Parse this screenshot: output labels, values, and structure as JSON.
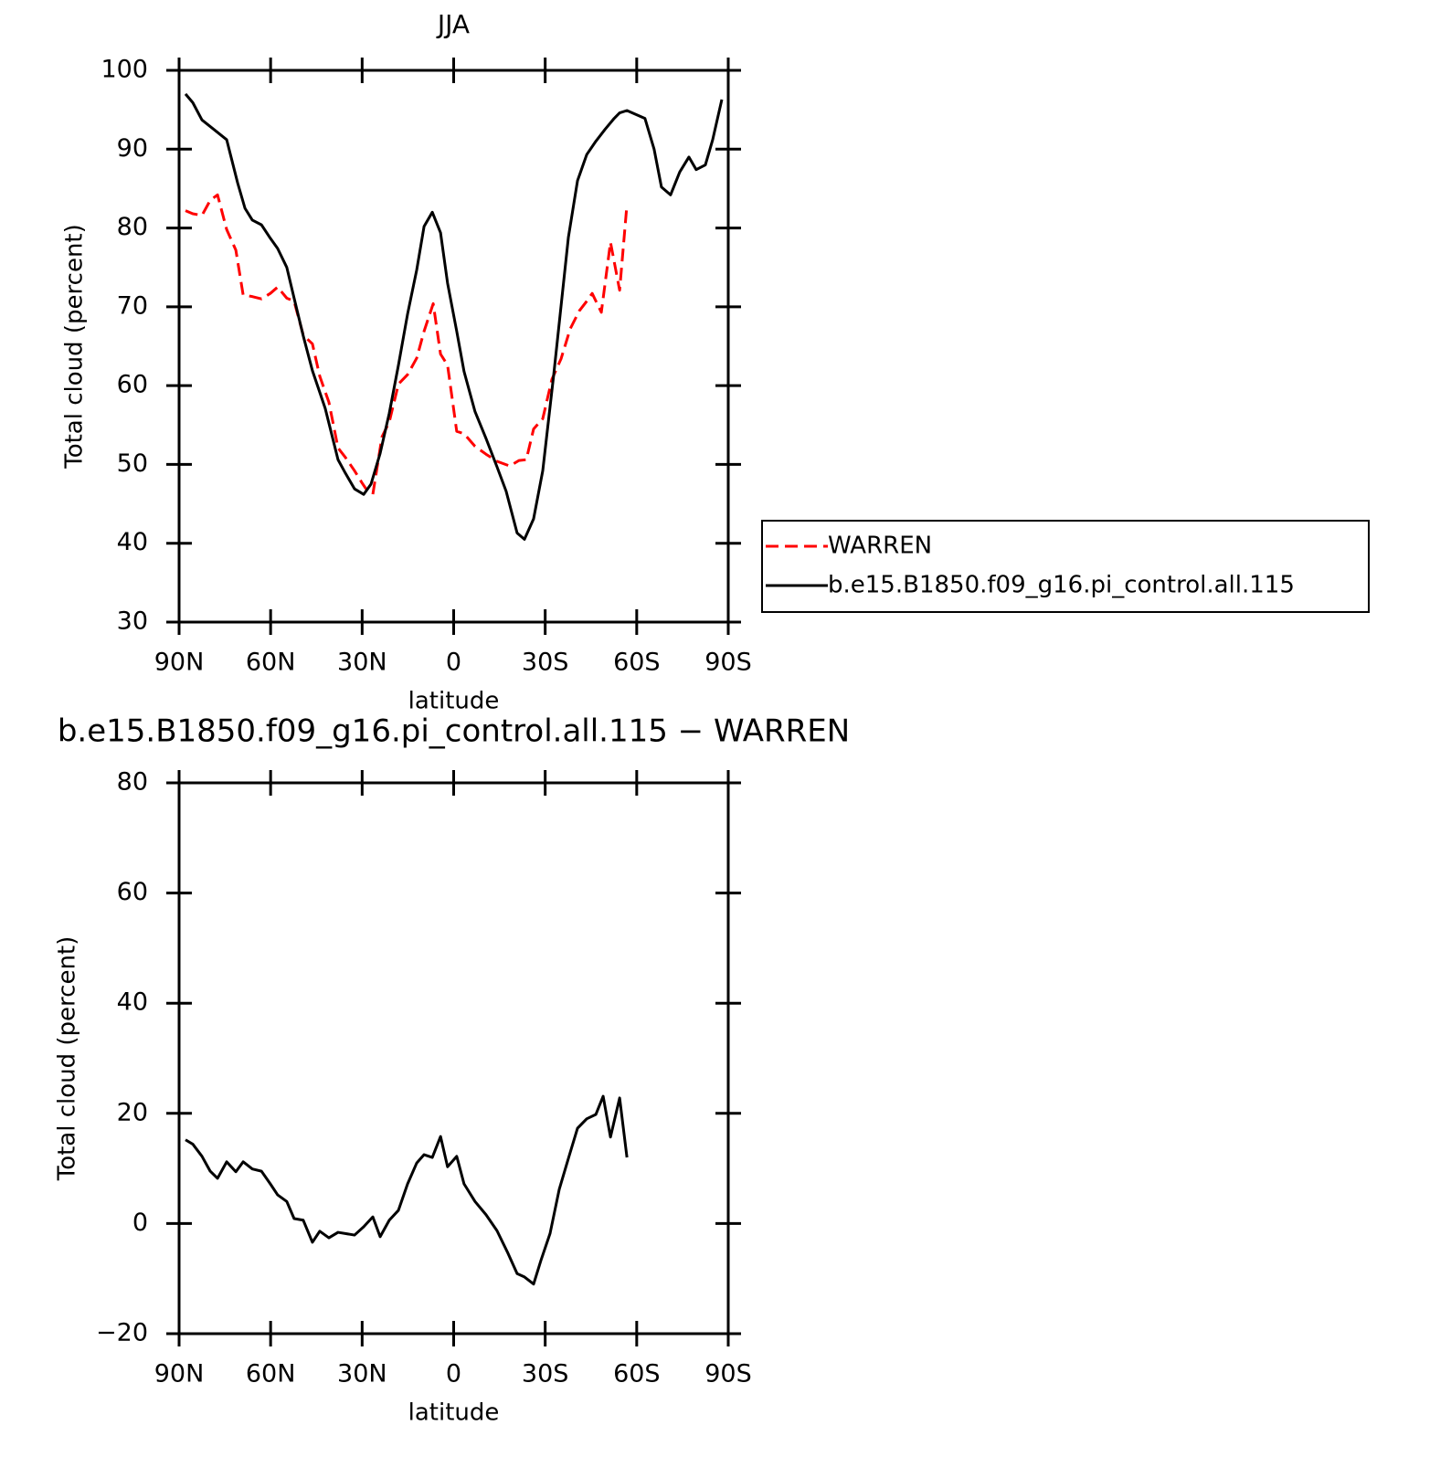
{
  "chart_data": [
    {
      "type": "line",
      "title": "JJA",
      "xlabel": "latitude",
      "ylabel": "Total cloud (percent)",
      "xlim": [
        90,
        -90
      ],
      "xticks": [
        {
          "value": 90,
          "label": "90N"
        },
        {
          "value": 60,
          "label": "60N"
        },
        {
          "value": 30,
          "label": "30N"
        },
        0,
        {
          "value": -30,
          "label": "30S"
        },
        {
          "value": -60,
          "label": "60S"
        },
        {
          "value": -90,
          "label": "90S"
        }
      ],
      "ylim": [
        30,
        100
      ],
      "yticks": [
        30,
        40,
        50,
        60,
        70,
        80,
        90,
        100
      ],
      "legend": "right",
      "series": [
        {
          "name": "WARREN",
          "color": "#ff0000",
          "style": "dashed",
          "x": [
            87.9,
            85.5,
            82.5,
            79.8,
            77.4,
            74.4,
            71.4,
            69.0,
            66.0,
            63.0,
            60.1,
            57.7,
            54.7,
            52.3,
            49.3,
            46.3,
            43.9,
            40.9,
            37.9,
            35.5,
            32.5,
            30.1,
            28.9,
            26.5,
            23.5,
            21.1,
            18.1,
            15.1,
            12.1,
            9.7,
            6.7,
            4.3,
            2.0,
            -1.0,
            -3.4,
            -7.0,
            -10.6,
            -14.2,
            -18.4,
            -21.4,
            -23.8,
            -26.2,
            -29.2,
            -32.2,
            -35.2,
            -38.2,
            -41.2,
            -43.6,
            -45.4,
            -48.4,
            -51.4,
            -54.4,
            -56.8
          ],
          "values": [
            82.2,
            81.8,
            81.6,
            83.5,
            84.2,
            79.8,
            77.2,
            71.5,
            71.3,
            71.0,
            71.7,
            72.5,
            71.1,
            70.7,
            66.4,
            65.3,
            61.2,
            57.9,
            52.1,
            50.9,
            49.2,
            47.7,
            47.0,
            46.2,
            53.5,
            55.4,
            60.2,
            61.4,
            63.5,
            66.9,
            70.4,
            64.0,
            62.6,
            54.2,
            53.9,
            52.3,
            51.3,
            50.4,
            49.8,
            50.5,
            50.6,
            54.5,
            55.8,
            60.8,
            63.4,
            67.2,
            69.5,
            70.7,
            71.7,
            69.3,
            78.2,
            72.1,
            83.0
          ]
        },
        {
          "name": "b.e15.B1850.f09_g16.pi_control.all.115",
          "color": "#000000",
          "style": "solid",
          "x": [
            87.9,
            85.5,
            82.5,
            78.6,
            74.4,
            70.8,
            68.4,
            66.0,
            63.0,
            60.1,
            57.7,
            54.7,
            52.3,
            49.3,
            46.3,
            42.1,
            37.9,
            35.5,
            32.5,
            29.5,
            27.1,
            24.1,
            21.1,
            18.1,
            15.1,
            12.1,
            9.7,
            7.0,
            4.3,
            2.0,
            -1.0,
            -3.4,
            -7.0,
            -10.6,
            -14.2,
            -17.2,
            -20.8,
            -23.2,
            -26.2,
            -29.2,
            -32.8,
            -37.6,
            -40.6,
            -43.6,
            -46.6,
            -49.6,
            -52.6,
            -54.4,
            -56.8,
            -62.7,
            -65.7,
            -68.1,
            -71.1,
            -74.1,
            -77.1,
            -79.5,
            -82.5,
            -84.9,
            -87.9
          ],
          "values": [
            97.0,
            95.9,
            93.7,
            92.5,
            91.2,
            85.7,
            82.5,
            81.0,
            80.4,
            78.7,
            77.4,
            75.0,
            71.1,
            66.3,
            61.9,
            57.1,
            50.6,
            48.9,
            46.9,
            46.2,
            47.5,
            51.4,
            56.5,
            62.6,
            69.1,
            74.7,
            80.2,
            82.0,
            79.4,
            73.0,
            66.9,
            61.8,
            56.7,
            53.3,
            49.7,
            46.6,
            41.3,
            40.5,
            43.1,
            49.2,
            61.4,
            78.8,
            86.0,
            89.3,
            91.0,
            92.5,
            93.9,
            94.6,
            94.9,
            93.9,
            90.0,
            85.2,
            84.2,
            87.1,
            89.0,
            87.4,
            88.0,
            91.2,
            96.3
          ]
        }
      ]
    },
    {
      "type": "line",
      "title": "b.e15.B1850.f09_g16.pi_control.all.115 − WARREN",
      "xlabel": "latitude",
      "ylabel": "Total cloud (percent)",
      "xlim": [
        90,
        -90
      ],
      "xticks": [
        {
          "value": 90,
          "label": "90N"
        },
        {
          "value": 60,
          "label": "60N"
        },
        {
          "value": 30,
          "label": "30N"
        },
        0,
        {
          "value": -30,
          "label": "30S"
        },
        {
          "value": -60,
          "label": "60S"
        },
        {
          "value": -90,
          "label": "90S"
        }
      ],
      "ylim": [
        -20,
        80
      ],
      "yticks": [
        {
          "value": -20,
          "label": "−20"
        },
        0,
        20,
        40,
        60,
        80
      ],
      "series": [
        {
          "color": "#000000",
          "style": "solid",
          "x": [
            87.9,
            85.5,
            82.5,
            79.8,
            77.4,
            74.4,
            71.4,
            69.0,
            66.0,
            63.0,
            60.1,
            57.7,
            54.7,
            52.3,
            49.3,
            46.3,
            43.9,
            40.9,
            37.9,
            32.5,
            29.5,
            26.5,
            24.1,
            21.1,
            18.1,
            15.1,
            12.1,
            9.7,
            7.0,
            4.3,
            2.0,
            -1.0,
            -3.4,
            -7.0,
            -10.6,
            -14.2,
            -17.8,
            -20.8,
            -23.2,
            -26.2,
            -28.6,
            -31.6,
            -34.6,
            -37.6,
            -40.6,
            -43.6,
            -46.6,
            -49.0,
            -51.4,
            -54.4,
            -56.8
          ],
          "values": [
            15.2,
            14.4,
            12.2,
            9.5,
            8.2,
            11.2,
            9.4,
            11.2,
            9.9,
            9.5,
            7.2,
            5.2,
            4.0,
            0.9,
            0.6,
            -3.4,
            -1.4,
            -2.6,
            -1.6,
            -2.1,
            -0.6,
            1.2,
            -2.4,
            0.6,
            2.4,
            7.2,
            11.0,
            12.5,
            12.0,
            15.8,
            10.3,
            12.2,
            7.2,
            4.0,
            1.6,
            -1.3,
            -5.4,
            -9.1,
            -9.7,
            -11.0,
            -6.7,
            -1.8,
            6.2,
            11.8,
            17.3,
            19.0,
            19.8,
            23.1,
            15.7,
            22.8,
            12.0
          ]
        }
      ]
    }
  ]
}
